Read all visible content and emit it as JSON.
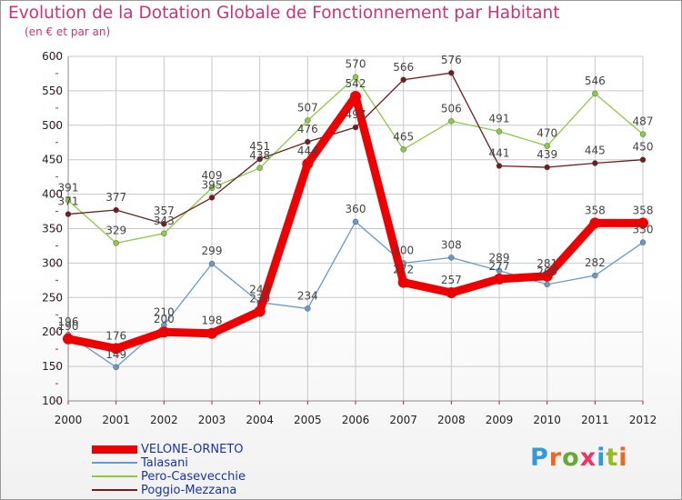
{
  "title": "Evolution de la Dotation Globale de Fonctionnement par Habitant",
  "subtitle": "(en € et par an)",
  "brand": "Proxiti",
  "colors": {
    "title": "#cc3377",
    "grid": "#c8c8c8",
    "axis_tick": "#cc2222"
  },
  "chart_data": {
    "type": "line",
    "x": [
      "2000",
      "2001",
      "2002",
      "2003",
      "2004",
      "2005",
      "2006",
      "2007",
      "2008",
      "2009",
      "2010",
      "2011",
      "2012"
    ],
    "ylim": [
      100,
      600
    ],
    "yticks": [
      "100",
      "150",
      "200",
      "250",
      "300",
      "350",
      "400",
      "450",
      "500",
      "550",
      "600"
    ],
    "grid": true,
    "legend_placement": "bottom-left",
    "series": [
      {
        "name": "VELONE-ORNETO",
        "color": "#ee0000",
        "values": [
          190,
          176,
          200,
          198,
          230,
          444,
          542,
          272,
          257,
          277,
          281,
          358,
          358
        ],
        "labels": [
          "190",
          "176",
          "200",
          "198",
          "230",
          "444",
          "542",
          "272",
          "257",
          "277",
          "281",
          "358",
          "358"
        ]
      },
      {
        "name": "Talasani",
        "color": "#6699cc",
        "values": [
          196,
          149,
          210,
          299,
          243,
          234,
          360,
          300,
          308,
          289,
          269,
          282,
          330
        ],
        "labels": [
          "196",
          "149",
          "210",
          "299",
          "243",
          "234",
          "360",
          "300",
          "308",
          "289",
          "269",
          "282",
          "330"
        ]
      },
      {
        "name": "Pero-Casevecchie",
        "color": "#88cc44",
        "values": [
          391,
          329,
          343,
          409,
          438,
          507,
          570,
          465,
          506,
          491,
          470,
          546,
          487
        ],
        "labels": [
          "391",
          "329",
          "343",
          "409",
          "438",
          "507",
          "570",
          "465",
          "506",
          "491",
          "470",
          "546",
          "487"
        ]
      },
      {
        "name": "Poggio-Mezzana",
        "color": "#6e1e1e",
        "values": [
          371,
          377,
          357,
          395,
          451,
          476,
          497,
          566,
          576,
          441,
          439,
          445,
          450
        ],
        "labels": [
          "371",
          "377",
          "357",
          "395",
          "451",
          "476",
          "497",
          "566",
          "576",
          "441",
          "439",
          "445",
          "450"
        ]
      }
    ]
  }
}
